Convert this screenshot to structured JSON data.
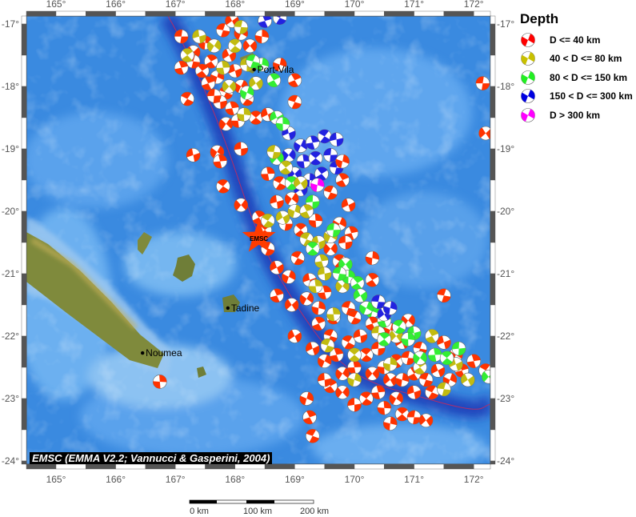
{
  "map": {
    "lon_ticks": [
      "165°",
      "166°",
      "167°",
      "168°",
      "169°",
      "170°",
      "171°",
      "172°"
    ],
    "lon_values": [
      165,
      166,
      167,
      168,
      169,
      170,
      171,
      172
    ],
    "lat_ticks": [
      "-17°",
      "-18°",
      "-19°",
      "-20°",
      "-21°",
      "-22°",
      "-23°",
      "-24°"
    ],
    "lat_values": [
      -17,
      -18,
      -19,
      -20,
      -21,
      -22,
      -23,
      -24
    ],
    "extent": {
      "lon": [
        164.5,
        172.3
      ],
      "lat": [
        -24.03,
        -16.87
      ]
    },
    "colors": {
      "ocean": "#3a8ae0",
      "land": "#7f8a3c",
      "trench": "#1c3cb8",
      "plate_boundary": "#b0306a",
      "epicenter": "#ff3c00"
    },
    "places": [
      {
        "name": "Port-Vila",
        "lon": 168.32,
        "lat": -17.73
      },
      {
        "name": "Tadine",
        "lon": 167.88,
        "lat": -21.55
      },
      {
        "name": "Noumea",
        "lon": 166.45,
        "lat": -22.27
      }
    ],
    "epicenter": {
      "label": "EMSC",
      "lon": 168.4,
      "lat": -20.42
    }
  },
  "legend": {
    "title": "Depth",
    "items": [
      {
        "label": "D <= 40 km",
        "color": "#ff0000"
      },
      {
        "label": "40 < D <= 80 km",
        "color": "#c8c000"
      },
      {
        "label": "80 < D <= 150 km",
        "color": "#22ee22"
      },
      {
        "label": "150 < D <= 300 km",
        "color": "#0000e0"
      },
      {
        "label": "D > 300 km",
        "color": "#ff00ff"
      }
    ]
  },
  "event_colors": [
    "#ff3300",
    "#c2bb10",
    "#33ee33",
    "#2222e0",
    "#ff00ff"
  ],
  "events": [
    [
      167.1,
      -17.2,
      0
    ],
    [
      167.3,
      -17.45,
      0
    ],
    [
      167.5,
      -17.3,
      0
    ],
    [
      167.6,
      -17.6,
      0
    ],
    [
      167.8,
      -17.1,
      0
    ],
    [
      167.9,
      -17.5,
      0
    ],
    [
      167.7,
      -17.85,
      0
    ],
    [
      167.55,
      -17.95,
      0
    ],
    [
      167.85,
      -18.1,
      0
    ],
    [
      168.0,
      -17.75,
      0
    ],
    [
      168.1,
      -18.0,
      0
    ],
    [
      167.95,
      -18.35,
      0
    ],
    [
      168.2,
      -18.2,
      0
    ],
    [
      167.75,
      -18.25,
      0
    ],
    [
      167.85,
      -18.6,
      0
    ],
    [
      168.05,
      -18.55,
      0
    ],
    [
      168.35,
      -18.5,
      0
    ],
    [
      167.65,
      -18.15,
      0
    ],
    [
      168.25,
      -17.35,
      0
    ],
    [
      168.45,
      -17.2,
      0
    ],
    [
      167.45,
      -17.75,
      0
    ],
    [
      167.3,
      -17.6,
      0
    ],
    [
      167.95,
      -16.95,
      0
    ],
    [
      168.75,
      -17.65,
      0
    ],
    [
      169.0,
      -17.9,
      0
    ],
    [
      169.0,
      -18.25,
      0
    ],
    [
      168.55,
      -18.45,
      0
    ],
    [
      168.1,
      -17.15,
      0
    ],
    [
      167.1,
      -17.7,
      0
    ],
    [
      167.2,
      -18.2,
      0
    ],
    [
      167.4,
      -17.2,
      1
    ],
    [
      167.65,
      -17.35,
      1
    ],
    [
      167.8,
      -17.7,
      1
    ],
    [
      168.0,
      -17.35,
      1
    ],
    [
      168.2,
      -17.65,
      1
    ],
    [
      167.9,
      -18.0,
      1
    ],
    [
      168.15,
      -18.45,
      1
    ],
    [
      167.2,
      -17.5,
      1
    ],
    [
      168.1,
      -17.05,
      1
    ],
    [
      168.35,
      -17.95,
      1
    ],
    [
      168.45,
      -17.65,
      2
    ],
    [
      168.65,
      -17.9,
      2
    ],
    [
      168.3,
      -17.6,
      2
    ],
    [
      168.7,
      -18.5,
      2
    ],
    [
      168.2,
      -18.1,
      2
    ],
    [
      168.5,
      -16.95,
      3
    ],
    [
      168.75,
      -16.9,
      3
    ],
    [
      167.3,
      -19.1,
      0
    ],
    [
      167.7,
      -19.05,
      0
    ],
    [
      167.75,
      -19.2,
      0
    ],
    [
      167.8,
      -19.6,
      0
    ],
    [
      168.1,
      -19.0,
      0
    ],
    [
      168.1,
      -19.9,
      0
    ],
    [
      166.74,
      -22.73,
      0
    ],
    [
      168.5,
      -20.3,
      0
    ],
    [
      172.15,
      -17.95,
      0
    ],
    [
      172.2,
      -18.75,
      0
    ],
    [
      170.3,
      -20.75,
      0
    ],
    [
      170.3,
      -21.1,
      0
    ],
    [
      171.5,
      -21.35,
      0
    ],
    [
      169.0,
      -22.0,
      0
    ],
    [
      169.2,
      -23.0,
      0
    ],
    [
      169.25,
      -23.3,
      0
    ],
    [
      169.3,
      -23.6,
      0
    ],
    [
      168.9,
      -18.75,
      3
    ],
    [
      169.1,
      -18.95,
      3
    ],
    [
      169.3,
      -18.9,
      3
    ],
    [
      169.5,
      -18.8,
      3
    ],
    [
      169.7,
      -18.85,
      3
    ],
    [
      168.9,
      -19.1,
      3
    ],
    [
      169.15,
      -19.2,
      3
    ],
    [
      169.35,
      -19.15,
      3
    ],
    [
      169.6,
      -19.1,
      3
    ],
    [
      169.0,
      -19.4,
      3
    ],
    [
      169.25,
      -19.5,
      3
    ],
    [
      169.45,
      -19.4,
      3
    ],
    [
      169.7,
      -19.3,
      3
    ],
    [
      169.1,
      -19.65,
      3
    ],
    [
      169.8,
      -19.2,
      0
    ],
    [
      169.8,
      -19.5,
      0
    ],
    [
      169.6,
      -19.7,
      0
    ],
    [
      169.9,
      -19.9,
      0
    ],
    [
      169.75,
      -20.2,
      0
    ],
    [
      169.95,
      -20.35,
      0
    ],
    [
      168.75,
      -19.55,
      0
    ],
    [
      168.7,
      -19.85,
      0
    ],
    [
      168.95,
      -19.8,
      0
    ],
    [
      168.55,
      -19.4,
      0
    ],
    [
      168.95,
      -19.55,
      2
    ],
    [
      169.3,
      -19.85,
      2
    ],
    [
      168.7,
      -19.15,
      2
    ],
    [
      168.8,
      -18.6,
      2
    ],
    [
      168.85,
      -19.3,
      1
    ],
    [
      168.65,
      -19.05,
      1
    ],
    [
      169.1,
      -19.55,
      1
    ],
    [
      169.38,
      -19.58,
      4
    ],
    [
      168.4,
      -20.1,
      0
    ],
    [
      168.55,
      -20.6,
      0
    ],
    [
      168.7,
      -20.9,
      0
    ],
    [
      168.9,
      -21.05,
      0
    ],
    [
      168.7,
      -21.35,
      0
    ],
    [
      169.05,
      -20.75,
      0
    ],
    [
      169.25,
      -21.1,
      0
    ],
    [
      169.2,
      -21.4,
      0
    ],
    [
      169.5,
      -21.3,
      0
    ],
    [
      169.75,
      -20.8,
      0
    ],
    [
      169.85,
      -20.5,
      0
    ],
    [
      169.6,
      -20.6,
      0
    ],
    [
      169.35,
      -20.15,
      0
    ],
    [
      169.1,
      -20.3,
      0
    ],
    [
      168.85,
      -20.2,
      0
    ],
    [
      168.95,
      -21.5,
      0
    ],
    [
      169.4,
      -21.55,
      0
    ],
    [
      169.65,
      -21.7,
      0
    ],
    [
      169.9,
      -21.55,
      0
    ],
    [
      168.8,
      -20.1,
      1
    ],
    [
      169.0,
      -20.0,
      1
    ],
    [
      169.2,
      -20.0,
      1
    ],
    [
      169.2,
      -20.45,
      1
    ],
    [
      169.4,
      -20.5,
      1
    ],
    [
      169.6,
      -20.4,
      1
    ],
    [
      169.45,
      -20.8,
      1
    ],
    [
      168.55,
      -20.15,
      1
    ],
    [
      169.5,
      -21.0,
      1
    ],
    [
      169.8,
      -21.2,
      1
    ],
    [
      169.35,
      -21.2,
      1
    ],
    [
      169.3,
      -20.6,
      2
    ],
    [
      169.65,
      -20.3,
      2
    ],
    [
      169.85,
      -20.85,
      2
    ],
    [
      169.9,
      -21.05,
      2
    ],
    [
      170.05,
      -21.15,
      2
    ],
    [
      169.75,
      -21.0,
      2
    ],
    [
      170.1,
      -21.35,
      2
    ],
    [
      170.3,
      -21.6,
      2
    ],
    [
      169.4,
      -21.8,
      0
    ],
    [
      169.6,
      -22.0,
      0
    ],
    [
      169.3,
      -22.2,
      0
    ],
    [
      169.5,
      -22.4,
      0
    ],
    [
      169.7,
      -22.3,
      0
    ],
    [
      169.9,
      -22.1,
      0
    ],
    [
      170.1,
      -22.0,
      0
    ],
    [
      169.8,
      -22.6,
      0
    ],
    [
      170.0,
      -22.5,
      0
    ],
    [
      170.2,
      -22.3,
      0
    ],
    [
      170.4,
      -22.2,
      0
    ],
    [
      170.3,
      -22.6,
      0
    ],
    [
      170.5,
      -22.5,
      0
    ],
    [
      170.7,
      -22.4,
      0
    ],
    [
      170.9,
      -22.35,
      0
    ],
    [
      170.6,
      -22.7,
      0
    ],
    [
      170.8,
      -22.7,
      0
    ],
    [
      171.0,
      -22.6,
      0
    ],
    [
      171.2,
      -22.7,
      0
    ],
    [
      171.4,
      -22.55,
      0
    ],
    [
      171.6,
      -22.7,
      0
    ],
    [
      171.8,
      -22.55,
      0
    ],
    [
      171.3,
      -22.9,
      0
    ],
    [
      171.0,
      -22.9,
      0
    ],
    [
      170.7,
      -23.0,
      0
    ],
    [
      170.4,
      -22.9,
      0
    ],
    [
      170.2,
      -23.0,
      0
    ],
    [
      170.0,
      -23.1,
      0
    ],
    [
      169.8,
      -22.9,
      0
    ],
    [
      170.5,
      -23.15,
      0
    ],
    [
      170.8,
      -23.25,
      0
    ],
    [
      171.0,
      -23.3,
      0
    ],
    [
      171.2,
      -23.35,
      0
    ],
    [
      170.6,
      -23.4,
      0
    ],
    [
      169.6,
      -22.8,
      0
    ],
    [
      171.1,
      -22.2,
      0
    ],
    [
      170.8,
      -22.1,
      0
    ],
    [
      170.6,
      -21.9,
      0
    ],
    [
      170.3,
      -21.8,
      0
    ],
    [
      170.0,
      -21.7,
      0
    ],
    [
      171.5,
      -22.1,
      0
    ],
    [
      171.7,
      -22.3,
      0
    ],
    [
      172.0,
      -22.4,
      0
    ],
    [
      172.2,
      -22.55,
      0
    ],
    [
      169.5,
      -22.7,
      0
    ],
    [
      170.9,
      -21.75,
      0
    ],
    [
      169.65,
      -21.65,
      1
    ],
    [
      170.0,
      -22.3,
      1
    ],
    [
      170.4,
      -21.95,
      1
    ],
    [
      170.7,
      -22.0,
      1
    ],
    [
      170.6,
      -22.45,
      1
    ],
    [
      171.1,
      -22.5,
      1
    ],
    [
      171.5,
      -22.85,
      1
    ],
    [
      171.9,
      -22.7,
      1
    ],
    [
      170.0,
      -22.7,
      1
    ],
    [
      171.3,
      -22.0,
      1
    ],
    [
      169.55,
      -22.15,
      1
    ],
    [
      171.7,
      -22.45,
      1
    ],
    [
      170.2,
      -21.55,
      2
    ],
    [
      170.5,
      -21.75,
      2
    ],
    [
      170.75,
      -21.85,
      2
    ],
    [
      171.0,
      -21.95,
      2
    ],
    [
      171.1,
      -22.35,
      2
    ],
    [
      171.35,
      -22.3,
      2
    ],
    [
      171.55,
      -22.35,
      2
    ],
    [
      171.75,
      -22.2,
      2
    ],
    [
      172.25,
      -22.65,
      2
    ],
    [
      170.9,
      -22.05,
      2
    ],
    [
      170.5,
      -22.05,
      2
    ],
    [
      170.4,
      -21.45,
      3
    ],
    [
      170.5,
      -21.65,
      3
    ],
    [
      170.6,
      -21.55,
      3
    ]
  ],
  "caption": "EMSC (EMMA V2.2; Vannucci & Gasperini, 2004)",
  "scale_bar": {
    "labels": [
      "0 km",
      "100 km",
      "200 km"
    ]
  }
}
